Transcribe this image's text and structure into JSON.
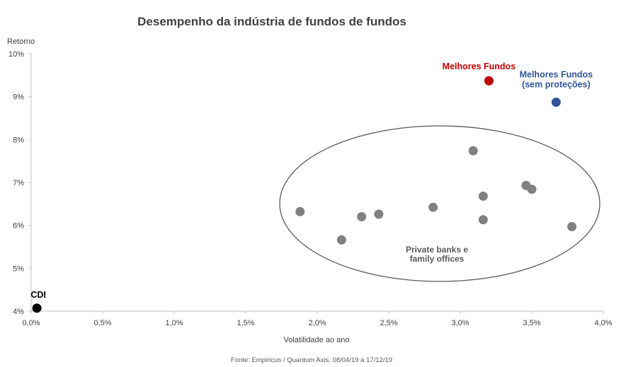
{
  "chart_data": {
    "type": "scatter",
    "title": "Desempenho da indústria  de fundos de fundos",
    "ylabel": "Retorno",
    "xlabel": "Volatilidade  ao ano",
    "source": "Fonte: Empiricus / Quantum Axis, 08/04/19 a 17/12/19",
    "xlim": [
      0,
      4.0
    ],
    "ylim": [
      4,
      10
    ],
    "xticks": [
      {
        "value": 0.0,
        "label": "0,0%"
      },
      {
        "value": 0.5,
        "label": "0,5%"
      },
      {
        "value": 1.0,
        "label": "1,0%"
      },
      {
        "value": 1.5,
        "label": "1,5%"
      },
      {
        "value": 2.0,
        "label": "2,0%"
      },
      {
        "value": 2.5,
        "label": "2,5%"
      },
      {
        "value": 3.0,
        "label": "3,0%"
      },
      {
        "value": 3.5,
        "label": "3,5%"
      },
      {
        "value": 4.0,
        "label": "4,0%"
      }
    ],
    "yticks": [
      {
        "value": 4,
        "label": "4%"
      },
      {
        "value": 5,
        "label": "5%"
      },
      {
        "value": 6,
        "label": "6%"
      },
      {
        "value": 7,
        "label": "7%"
      },
      {
        "value": 8,
        "label": "8%"
      },
      {
        "value": 9,
        "label": "9%"
      },
      {
        "value": 10,
        "label": "10%"
      }
    ],
    "grid": false,
    "series": [
      {
        "name": "CDI",
        "color": "#000000",
        "points": [
          {
            "x": 0.04,
            "y": 4.07
          }
        ]
      },
      {
        "name": "Melhores Fundos",
        "color": "#c00000",
        "points": [
          {
            "x": 3.2,
            "y": 9.37
          }
        ]
      },
      {
        "name": "Melhores Fundos (sem proteções)",
        "label_lines": [
          "Melhores Fundos",
          "(sem proteções)"
        ],
        "color": "#2f5597",
        "points": [
          {
            "x": 3.67,
            "y": 8.87
          }
        ]
      },
      {
        "name": "Private banks e family offices",
        "label_lines": [
          "Private banks e",
          "family offices"
        ],
        "color": "#808080",
        "points": [
          {
            "x": 1.88,
            "y": 6.32
          },
          {
            "x": 2.17,
            "y": 5.66
          },
          {
            "x": 2.31,
            "y": 6.2
          },
          {
            "x": 2.43,
            "y": 6.26
          },
          {
            "x": 2.81,
            "y": 6.42
          },
          {
            "x": 3.09,
            "y": 7.74
          },
          {
            "x": 3.16,
            "y": 6.68
          },
          {
            "x": 3.16,
            "y": 6.13
          },
          {
            "x": 3.46,
            "y": 6.93
          },
          {
            "x": 3.5,
            "y": 6.84
          },
          {
            "x": 3.78,
            "y": 5.97
          }
        ]
      }
    ]
  }
}
